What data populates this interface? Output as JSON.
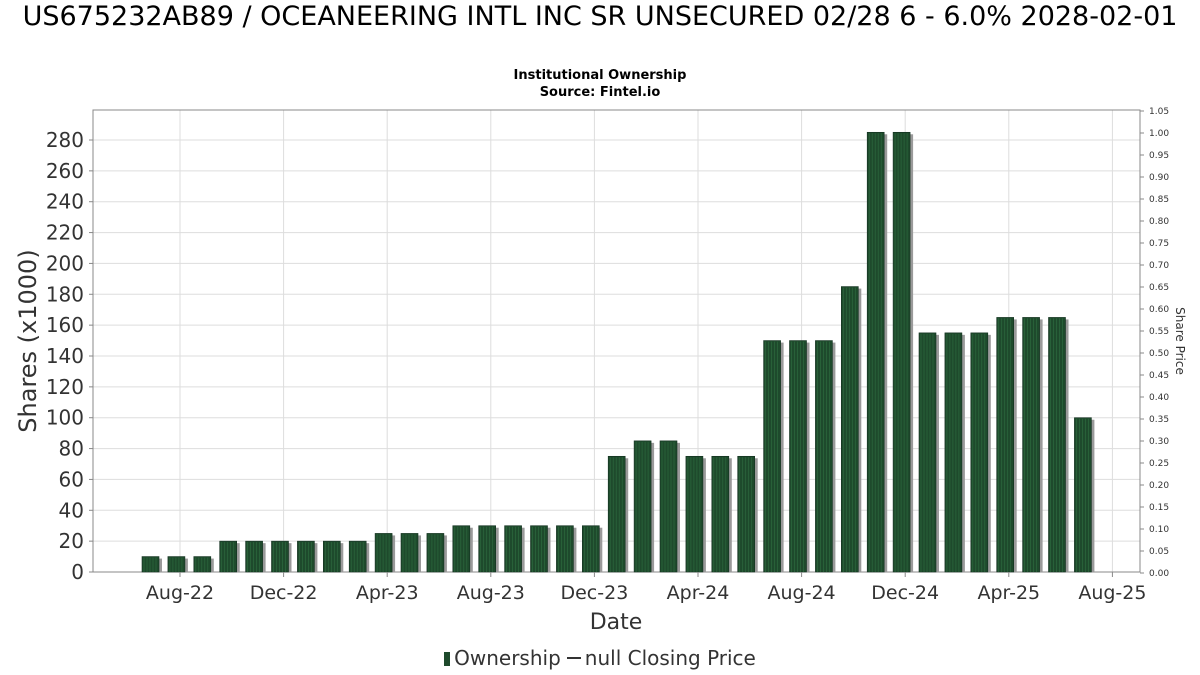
{
  "title": "US675232AB89 / OCEANEERING INTL INC SR UNSECURED 02/28 6 - 6.0% 2028-02-01",
  "subtitle_line1": "Institutional Ownership",
  "subtitle_line2": "Source: Fintel.io",
  "legend": {
    "ownership": "Ownership",
    "price": "null Closing Price"
  },
  "colors": {
    "bar": "#1e4a2c",
    "bar_shadow": "#9a9a9a",
    "grid": "#dddddd"
  },
  "chart_data": {
    "type": "bar",
    "xlabel": "Date",
    "ylabel": "Shares (x1000)",
    "y2label": "Share Price",
    "ylim": [
      0,
      300
    ],
    "y2lim": [
      0,
      1.05
    ],
    "yticks": [
      0,
      20,
      40,
      60,
      80,
      100,
      120,
      140,
      160,
      180,
      200,
      220,
      240,
      260,
      280
    ],
    "y2ticks": [
      "0.00",
      "0.05",
      "0.10",
      "0.15",
      "0.20",
      "0.25",
      "0.30",
      "0.35",
      "0.40",
      "0.45",
      "0.50",
      "0.55",
      "0.60",
      "0.65",
      "0.70",
      "0.75",
      "0.80",
      "0.85",
      "0.90",
      "0.95",
      "1.00",
      "1.05"
    ],
    "xticks": [
      "Aug-22",
      "Dec-22",
      "Apr-23",
      "Aug-23",
      "Dec-23",
      "Apr-24",
      "Aug-24",
      "Dec-24",
      "Apr-25",
      "Aug-25"
    ],
    "grid": true,
    "legend_position": "bottom",
    "series": [
      {
        "name": "Ownership",
        "values": [
          10,
          10,
          10,
          20,
          20,
          20,
          20,
          20,
          20,
          25,
          25,
          25,
          30,
          30,
          30,
          30,
          30,
          30,
          75,
          85,
          85,
          75,
          75,
          75,
          150,
          150,
          150,
          185,
          285,
          285,
          155,
          155,
          155,
          165,
          165,
          165,
          100
        ]
      }
    ]
  }
}
